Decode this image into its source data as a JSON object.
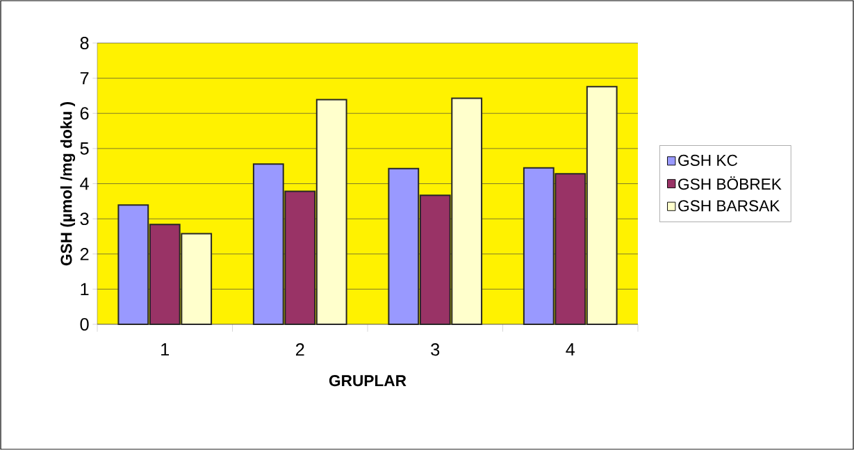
{
  "chart_data": {
    "type": "bar",
    "xlabel": "GRUPLAR",
    "ylabel": "GSH (µmol /mg doku )",
    "categories": [
      "1",
      "2",
      "3",
      "4"
    ],
    "series": [
      {
        "name": "GSH KC",
        "color": "#9999ff",
        "values": [
          3.39,
          4.56,
          4.43,
          4.45
        ]
      },
      {
        "name": "GSH BÖBREK",
        "color": "#993366",
        "values": [
          2.84,
          3.78,
          3.67,
          4.28
        ]
      },
      {
        "name": "GSH BARSAK",
        "color": "#ffffcc",
        "values": [
          2.58,
          6.39,
          6.43,
          6.76
        ]
      }
    ],
    "ylim": [
      0,
      8
    ],
    "yticks": [
      0,
      1,
      2,
      3,
      4,
      5,
      6,
      7,
      8
    ],
    "grid": "y",
    "legend": "right"
  }
}
